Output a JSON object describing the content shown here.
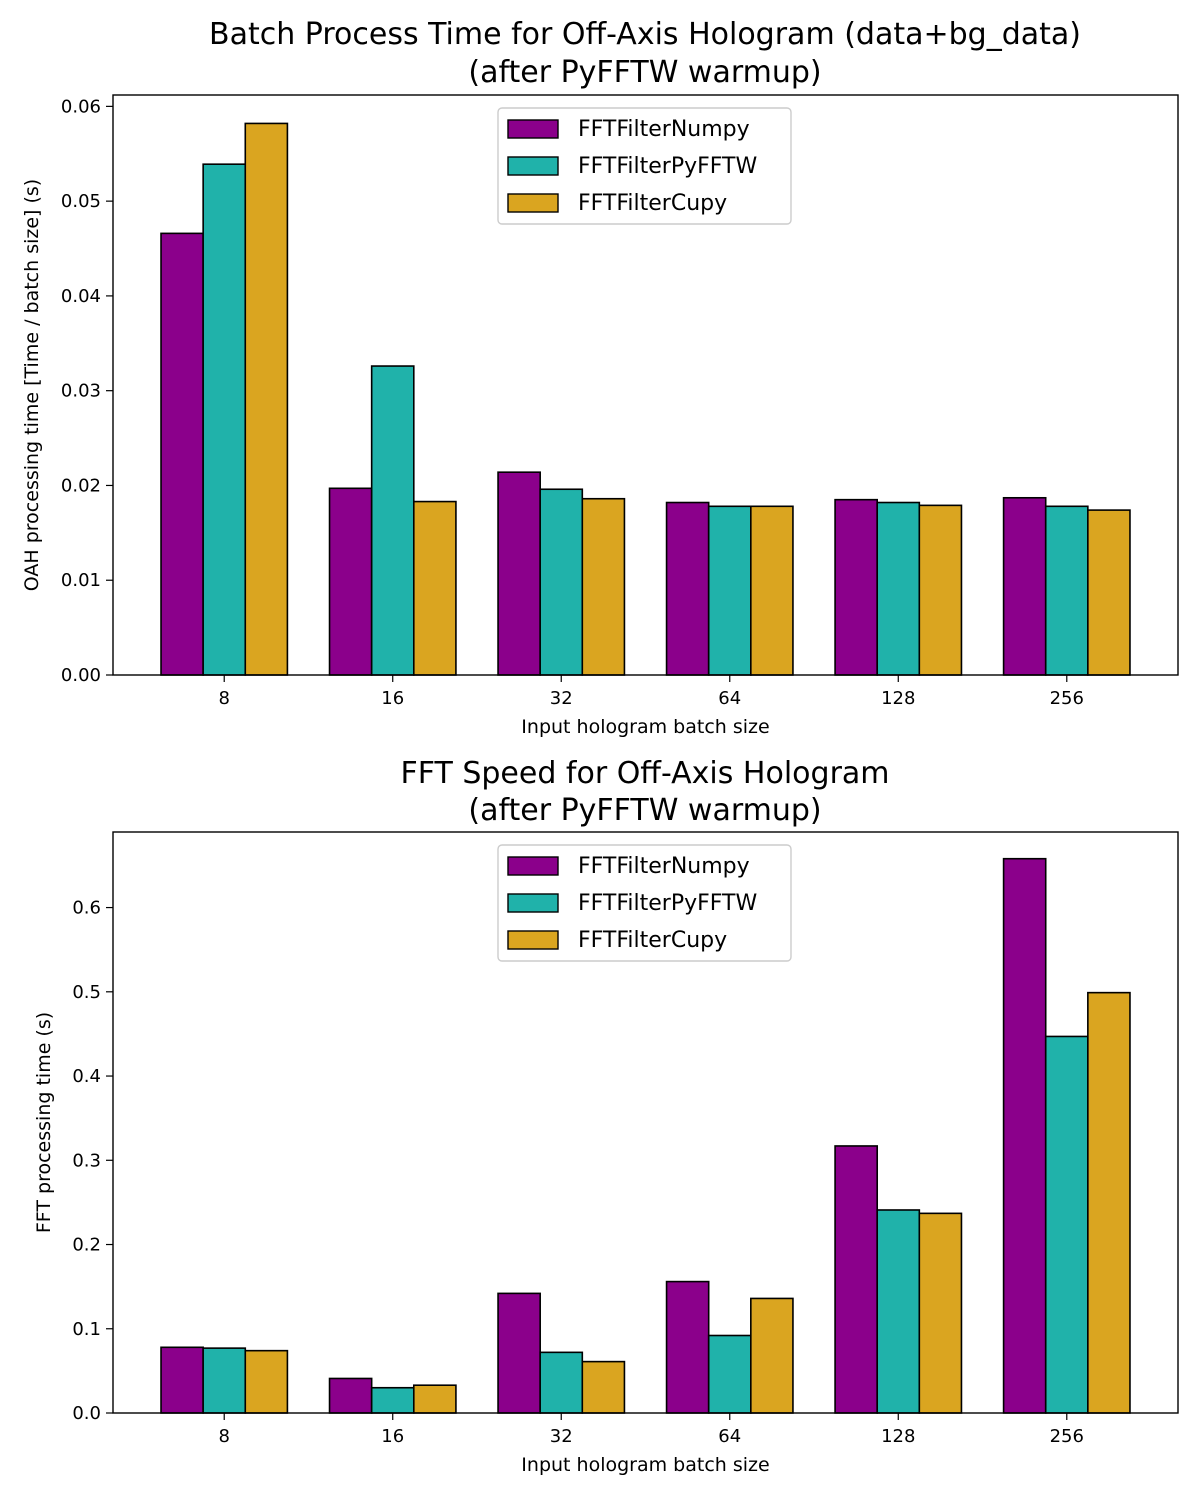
{
  "chart_data": [
    {
      "type": "bar",
      "title": "Batch Process Time for Off-Axis Hologram (data+bg_data)",
      "subtitle": "(after PyFFTW warmup)",
      "xlabel": "Input hologram batch size",
      "ylabel": "OAH processing time [Time / batch size] (s)",
      "categories": [
        "8",
        "16",
        "32",
        "64",
        "128",
        "256"
      ],
      "ylim": [
        0,
        0.0612
      ],
      "yticks": [
        "0.00",
        "0.01",
        "0.02",
        "0.03",
        "0.04",
        "0.05",
        "0.06"
      ],
      "ytick_values": [
        0,
        0.01,
        0.02,
        0.03,
        0.04,
        0.05,
        0.06
      ],
      "grid": false,
      "legend_position": "top-center",
      "series": [
        {
          "name": "FFTFilterNumpy",
          "color": "#8b008b",
          "values": [
            0.0466,
            0.0197,
            0.0214,
            0.0182,
            0.0185,
            0.0187
          ]
        },
        {
          "name": "FFTFilterPyFFTW",
          "color": "#20b2aa",
          "values": [
            0.0539,
            0.0326,
            0.0196,
            0.0178,
            0.0182,
            0.0178
          ]
        },
        {
          "name": "FFTFilterCupy",
          "color": "#daa520",
          "values": [
            0.0582,
            0.0183,
            0.0186,
            0.0178,
            0.0179,
            0.0174
          ]
        }
      ]
    },
    {
      "type": "bar",
      "title": "FFT Speed for Off-Axis Hologram",
      "subtitle": "(after PyFFTW warmup)",
      "xlabel": "Input hologram batch size",
      "ylabel": "FFT processing time (s)",
      "categories": [
        "8",
        "16",
        "32",
        "64",
        "128",
        "256"
      ],
      "ylim": [
        0,
        0.6897
      ],
      "yticks": [
        "0.0",
        "0.1",
        "0.2",
        "0.3",
        "0.4",
        "0.5",
        "0.6"
      ],
      "ytick_values": [
        0,
        0.1,
        0.2,
        0.3,
        0.4,
        0.5,
        0.6
      ],
      "grid": false,
      "legend_position": "top-center",
      "series": [
        {
          "name": "FFTFilterNumpy",
          "color": "#8b008b",
          "values": [
            0.078,
            0.041,
            0.142,
            0.156,
            0.317,
            0.658
          ]
        },
        {
          "name": "FFTFilterPyFFTW",
          "color": "#20b2aa",
          "values": [
            0.077,
            0.03,
            0.072,
            0.092,
            0.241,
            0.447
          ]
        },
        {
          "name": "FFTFilterCupy",
          "color": "#daa520",
          "values": [
            0.074,
            0.033,
            0.061,
            0.136,
            0.237,
            0.499
          ]
        }
      ]
    }
  ]
}
